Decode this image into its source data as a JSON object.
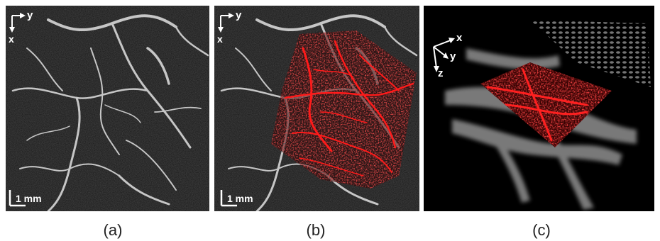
{
  "panels": [
    {
      "id": "a",
      "caption": "(a)",
      "axis_x": "x",
      "axis_y": "y",
      "scale_bar": "1 mm"
    },
    {
      "id": "b",
      "caption": "(b)",
      "axis_x": "x",
      "axis_y": "y",
      "scale_bar": "1 mm"
    },
    {
      "id": "c",
      "caption": "(c)",
      "axis_x": "x",
      "axis_y": "y",
      "axis_z": "z"
    }
  ],
  "colors": {
    "vessel": "#c8c8c8",
    "overlay": "#ff1a1a",
    "background": "#161616"
  }
}
